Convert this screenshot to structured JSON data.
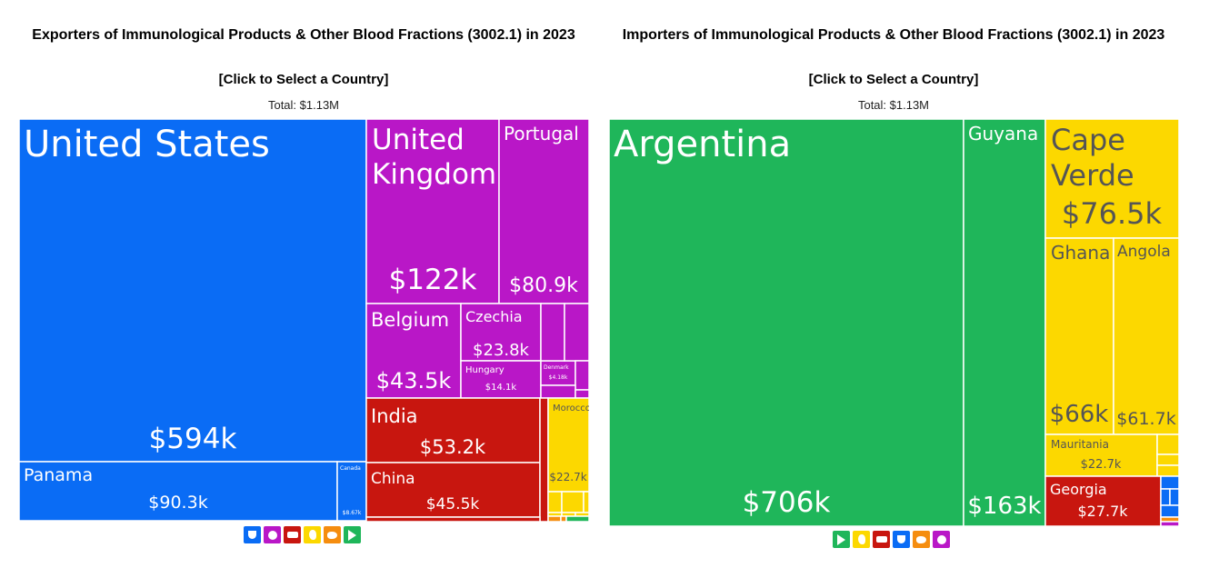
{
  "colors": {
    "north_america": "#0a6cf5",
    "europe": "#b917c7",
    "asia": "#c8160f",
    "africa": "#fcd800",
    "south_america": "#1fb65a",
    "oceania": "#f58d0f"
  },
  "exporters": {
    "title": "Exporters of Immunological Products & Other Blood Fractions (3002.1) in 2023",
    "subtitle": "[Click to Select a Country]",
    "total": "Total: $1.13M"
  },
  "importers": {
    "title": "Importers of Immunological Products & Other Blood Fractions (3002.1) in 2023",
    "subtitle": "[Click to Select a Country]",
    "total": "Total: $1.13M"
  },
  "legend_icons": {
    "exporters": [
      "north-america-icon",
      "europe-icon",
      "asia-icon",
      "africa-icon",
      "oceania-icon",
      "south-america-icon"
    ],
    "importers": [
      "south-america-icon",
      "africa-icon",
      "asia-icon",
      "north-america-icon",
      "oceania-icon",
      "europe-icon"
    ]
  },
  "chart_data": [
    {
      "type": "treemap",
      "title": "Exporters of Immunological Products & Other Blood Fractions (3002.1) in 2023",
      "total": "$1.13M",
      "items": [
        {
          "name": "United States",
          "value": "$594k",
          "region": "north_america"
        },
        {
          "name": "Panama",
          "value": "$90.3k",
          "region": "north_america"
        },
        {
          "name": "Canada",
          "value": "$8.67k",
          "region": "north_america"
        },
        {
          "name": "United Kingdom",
          "value": "$122k",
          "region": "europe"
        },
        {
          "name": "Portugal",
          "value": "$80.9k",
          "region": "europe"
        },
        {
          "name": "Belgium",
          "value": "$43.5k",
          "region": "europe"
        },
        {
          "name": "Czechia",
          "value": "$23.8k",
          "region": "europe"
        },
        {
          "name": "Hungary",
          "value": "$14.1k",
          "region": "europe"
        },
        {
          "name": "Denmark",
          "value": "$4.18k",
          "region": "europe"
        },
        {
          "name": "",
          "value": "",
          "region": "europe"
        },
        {
          "name": "",
          "value": "",
          "region": "europe"
        },
        {
          "name": "",
          "value": "",
          "region": "europe"
        },
        {
          "name": "",
          "value": "",
          "region": "europe"
        },
        {
          "name": "",
          "value": "",
          "region": "europe"
        },
        {
          "name": "India",
          "value": "$53.2k",
          "region": "asia"
        },
        {
          "name": "China",
          "value": "$45.5k",
          "region": "asia"
        },
        {
          "name": "",
          "value": "",
          "region": "asia"
        },
        {
          "name": "",
          "value": "",
          "region": "asia"
        },
        {
          "name": "Morocco",
          "value": "$22.7k",
          "region": "africa"
        },
        {
          "name": "",
          "value": "",
          "region": "africa"
        },
        {
          "name": "",
          "value": "",
          "region": "africa"
        },
        {
          "name": "",
          "value": "",
          "region": "africa"
        },
        {
          "name": "",
          "value": "",
          "region": "africa"
        },
        {
          "name": "",
          "value": "",
          "region": "africa"
        },
        {
          "name": "",
          "value": "",
          "region": "africa"
        },
        {
          "name": "",
          "value": "",
          "region": "oceania"
        },
        {
          "name": "",
          "value": "",
          "region": "oceania"
        },
        {
          "name": "",
          "value": "",
          "region": "south_america"
        }
      ]
    },
    {
      "type": "treemap",
      "title": "Importers of Immunological Products & Other Blood Fractions (3002.1) in 2023",
      "total": "$1.13M",
      "items": [
        {
          "name": "Argentina",
          "value": "$706k",
          "region": "south_america"
        },
        {
          "name": "Guyana",
          "value": "$163k",
          "region": "south_america"
        },
        {
          "name": "Cape Verde",
          "value": "$76.5k",
          "region": "africa"
        },
        {
          "name": "Ghana",
          "value": "$66k",
          "region": "africa"
        },
        {
          "name": "Angola",
          "value": "$61.7k",
          "region": "africa"
        },
        {
          "name": "Mauritania",
          "value": "$22.7k",
          "region": "africa"
        },
        {
          "name": "",
          "value": "",
          "region": "africa"
        },
        {
          "name": "",
          "value": "",
          "region": "africa"
        },
        {
          "name": "",
          "value": "",
          "region": "africa"
        },
        {
          "name": "Georgia",
          "value": "$27.7k",
          "region": "asia"
        },
        {
          "name": "",
          "value": "",
          "region": "north_america"
        },
        {
          "name": "",
          "value": "",
          "region": "north_america"
        },
        {
          "name": "",
          "value": "",
          "region": "north_america"
        },
        {
          "name": "",
          "value": "",
          "region": "north_america"
        },
        {
          "name": "",
          "value": "",
          "region": "oceania"
        },
        {
          "name": "",
          "value": "",
          "region": "europe"
        }
      ]
    }
  ]
}
